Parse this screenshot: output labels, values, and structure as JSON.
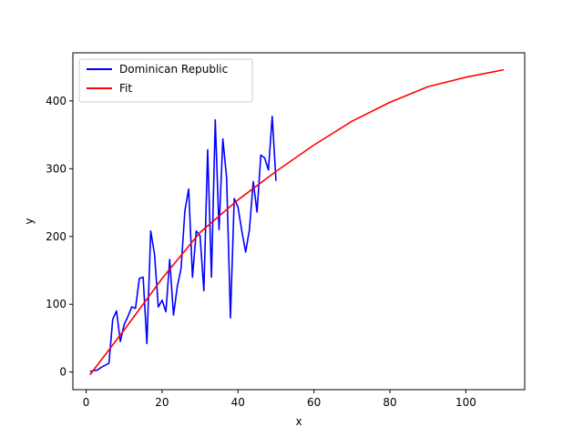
{
  "chart_data": {
    "type": "line",
    "title": "",
    "xlabel": "x",
    "ylabel": "y",
    "xlim": [
      -3.5,
      115.5
    ],
    "ylim": [
      -26,
      471
    ],
    "xticks": [
      0,
      20,
      40,
      60,
      80,
      100
    ],
    "yticks": [
      0,
      100,
      200,
      300,
      400
    ],
    "grid": false,
    "legend_position": "upper left",
    "series": [
      {
        "name": "Dominican Republic",
        "color": "#0000ff",
        "x": [
          1,
          2,
          3,
          4,
          5,
          6,
          7,
          8,
          9,
          10,
          11,
          12,
          13,
          14,
          15,
          16,
          17,
          18,
          19,
          20,
          21,
          22,
          23,
          24,
          25,
          26,
          27,
          28,
          29,
          30,
          31,
          32,
          33,
          34,
          35,
          36,
          37,
          38,
          39,
          40,
          41,
          42,
          43,
          44,
          45,
          46,
          47,
          48,
          49,
          50
        ],
        "y": [
          1,
          2,
          3,
          7,
          10,
          13,
          78,
          90,
          45,
          70,
          82,
          96,
          94,
          138,
          140,
          42,
          208,
          174,
          96,
          106,
          89,
          166,
          84,
          126,
          153,
          238,
          270,
          140,
          208,
          201,
          120,
          328,
          140,
          372,
          210,
          344,
          286,
          80,
          256,
          243,
          208,
          177,
          210,
          281,
          236,
          320,
          316,
          298,
          377,
          282
        ]
      },
      {
        "name": "Fit",
        "color": "#ff0000",
        "x": [
          1,
          10,
          20,
          30,
          40,
          50,
          60,
          70,
          80,
          90,
          100,
          110
        ],
        "y": [
          -4,
          62,
          138,
          206,
          254,
          296,
          335,
          370,
          398,
          421,
          435,
          446
        ]
      }
    ]
  }
}
